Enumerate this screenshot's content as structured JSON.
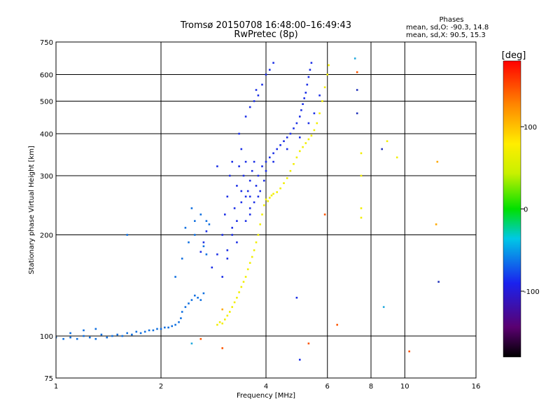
{
  "chart_data": {
    "type": "scatter",
    "title": "Tromsø 20150708 16:48:00–16:49:43",
    "subtitle": "RwPretec (8p)",
    "xlabel": "Frequency [MHz]",
    "ylabel": "Stationary phase Virtual Height [km]",
    "x_scale": "log",
    "y_scale": "log",
    "xlim": [
      1,
      16
    ],
    "ylim": [
      75,
      750
    ],
    "x_ticks": [
      1,
      2,
      4,
      6,
      8,
      10,
      16
    ],
    "y_ticks": [
      75,
      100,
      200,
      300,
      400,
      500,
      600,
      750
    ],
    "grid": true,
    "phase_stats": {
      "heading": "Phases",
      "o_line": "mean, sd,O: -90.3, 14.8",
      "x_line": "mean, sd,X:  90.5, 15.3"
    },
    "colorbar": {
      "label": "[deg]",
      "range": [
        -180,
        180
      ],
      "ticks": [
        100,
        0,
        -100
      ]
    },
    "series": [
      {
        "phase": -90,
        "color": "#1a2ee6",
        "points": [
          [
            2.6,
            178
          ],
          [
            2.65,
            190
          ],
          [
            2.7,
            205
          ],
          [
            2.8,
            160
          ],
          [
            2.9,
            175
          ],
          [
            3.0,
            200
          ],
          [
            3.0,
            150
          ],
          [
            3.05,
            230
          ],
          [
            3.1,
            260
          ],
          [
            3.1,
            180
          ],
          [
            3.15,
            300
          ],
          [
            3.2,
            210
          ],
          [
            3.2,
            330
          ],
          [
            3.25,
            240
          ],
          [
            3.3,
            280
          ],
          [
            3.3,
            190
          ],
          [
            3.35,
            320
          ],
          [
            3.4,
            250
          ],
          [
            3.4,
            360
          ],
          [
            3.45,
            300
          ],
          [
            3.5,
            220
          ],
          [
            3.5,
            330
          ],
          [
            3.55,
            270
          ],
          [
            3.6,
            290
          ],
          [
            3.6,
            240
          ],
          [
            3.65,
            310
          ],
          [
            3.7,
            330
          ],
          [
            3.7,
            250
          ],
          [
            3.75,
            280
          ],
          [
            3.8,
            300
          ],
          [
            3.85,
            270
          ],
          [
            3.9,
            320
          ],
          [
            3.95,
            290
          ],
          [
            4.0,
            310
          ],
          [
            4.0,
            330
          ],
          [
            4.1,
            340
          ],
          [
            4.2,
            350
          ],
          [
            4.3,
            360
          ],
          [
            4.4,
            370
          ],
          [
            4.5,
            380
          ],
          [
            4.6,
            390
          ],
          [
            4.7,
            400
          ],
          [
            4.8,
            415
          ],
          [
            4.9,
            430
          ],
          [
            5.0,
            450
          ],
          [
            5.05,
            470
          ],
          [
            5.1,
            490
          ],
          [
            5.15,
            510
          ],
          [
            5.2,
            530
          ],
          [
            5.25,
            560
          ],
          [
            5.3,
            590
          ],
          [
            5.35,
            620
          ],
          [
            5.4,
            650
          ],
          [
            3.5,
            450
          ],
          [
            3.6,
            480
          ],
          [
            3.7,
            500
          ],
          [
            3.75,
            540
          ],
          [
            3.8,
            520
          ],
          [
            3.9,
            560
          ],
          [
            4.0,
            600
          ],
          [
            4.1,
            620
          ],
          [
            4.2,
            650
          ],
          [
            3.6,
            230
          ],
          [
            3.3,
            220
          ],
          [
            3.1,
            170
          ],
          [
            3.2,
            200
          ],
          [
            3.5,
            260
          ],
          [
            3.8,
            260
          ],
          [
            4.2,
            330
          ],
          [
            4.6,
            360
          ],
          [
            5.0,
            390
          ],
          [
            5.3,
            430
          ],
          [
            5.5,
            460
          ],
          [
            5.7,
            520
          ],
          [
            3.4,
            270
          ],
          [
            3.6,
            260
          ],
          [
            2.9,
            320
          ],
          [
            3.35,
            400
          ],
          [
            4.9,
            130
          ],
          [
            5.0,
            85
          ]
        ]
      },
      {
        "phase": -100,
        "color": "#0f6fe0",
        "points": [
          [
            1.0,
            99
          ],
          [
            1.05,
            98
          ],
          [
            1.1,
            99
          ],
          [
            1.15,
            98
          ],
          [
            1.2,
            100
          ],
          [
            1.25,
            99
          ],
          [
            1.3,
            98
          ],
          [
            1.35,
            101
          ],
          [
            1.4,
            99
          ],
          [
            1.45,
            100
          ],
          [
            1.5,
            101
          ],
          [
            1.55,
            100
          ],
          [
            1.6,
            102
          ],
          [
            1.65,
            101
          ],
          [
            1.7,
            103
          ],
          [
            1.75,
            102
          ],
          [
            1.8,
            103
          ],
          [
            1.85,
            104
          ],
          [
            1.9,
            104
          ],
          [
            1.95,
            105
          ],
          [
            2.0,
            105
          ],
          [
            2.05,
            106
          ],
          [
            2.1,
            106
          ],
          [
            2.15,
            107
          ],
          [
            2.2,
            108
          ],
          [
            2.25,
            110
          ],
          [
            2.28,
            113
          ],
          [
            2.3,
            118
          ],
          [
            2.35,
            122
          ],
          [
            2.4,
            125
          ],
          [
            2.45,
            128
          ],
          [
            2.5,
            132
          ],
          [
            2.55,
            130
          ],
          [
            2.6,
            128
          ],
          [
            2.65,
            134
          ],
          [
            2.2,
            150
          ],
          [
            2.3,
            170
          ],
          [
            2.4,
            190
          ],
          [
            2.35,
            210
          ],
          [
            2.5,
            220
          ],
          [
            2.6,
            230
          ],
          [
            2.5,
            200
          ],
          [
            2.7,
            175
          ],
          [
            2.65,
            185
          ],
          [
            2.45,
            240
          ],
          [
            1.6,
            200
          ],
          [
            1.3,
            105
          ],
          [
            1.2,
            104
          ],
          [
            1.1,
            102
          ],
          [
            2.7,
            220
          ],
          [
            2.75,
            215
          ]
        ]
      },
      {
        "phase": 100,
        "color": "#f2ee00",
        "points": [
          [
            2.9,
            108
          ],
          [
            2.95,
            110
          ],
          [
            3.0,
            109
          ],
          [
            3.05,
            112
          ],
          [
            3.1,
            115
          ],
          [
            3.15,
            118
          ],
          [
            3.2,
            122
          ],
          [
            3.25,
            126
          ],
          [
            3.3,
            130
          ],
          [
            3.35,
            135
          ],
          [
            3.4,
            140
          ],
          [
            3.45,
            145
          ],
          [
            3.5,
            150
          ],
          [
            3.55,
            158
          ],
          [
            3.6,
            165
          ],
          [
            3.65,
            172
          ],
          [
            3.7,
            180
          ],
          [
            3.75,
            190
          ],
          [
            3.8,
            200
          ],
          [
            3.85,
            215
          ],
          [
            3.9,
            230
          ],
          [
            3.95,
            245
          ],
          [
            4.0,
            255
          ],
          [
            4.05,
            252
          ],
          [
            4.1,
            258
          ],
          [
            4.15,
            262
          ],
          [
            4.2,
            265
          ],
          [
            4.3,
            268
          ],
          [
            4.4,
            275
          ],
          [
            4.5,
            285
          ],
          [
            4.6,
            295
          ],
          [
            4.7,
            310
          ],
          [
            4.8,
            325
          ],
          [
            4.9,
            340
          ],
          [
            5.0,
            355
          ],
          [
            5.1,
            365
          ],
          [
            5.2,
            375
          ],
          [
            5.3,
            385
          ],
          [
            5.4,
            395
          ],
          [
            5.5,
            410
          ],
          [
            5.6,
            430
          ],
          [
            5.7,
            460
          ],
          [
            5.8,
            500
          ],
          [
            5.9,
            550
          ],
          [
            6.0,
            600
          ],
          [
            6.05,
            640
          ],
          [
            7.5,
            350
          ],
          [
            7.5,
            300
          ],
          [
            7.5,
            240
          ],
          [
            7.5,
            225
          ],
          [
            8.9,
            380
          ],
          [
            9.5,
            340
          ]
        ]
      },
      {
        "phase": 150,
        "color": "#ff5500",
        "points": [
          [
            2.6,
            98
          ],
          [
            3.0,
            92
          ],
          [
            5.3,
            95
          ],
          [
            5.9,
            230
          ],
          [
            6.4,
            108
          ],
          [
            7.3,
            610
          ],
          [
            10.3,
            90
          ]
        ]
      },
      {
        "phase": -130,
        "color": "#2233bb",
        "points": [
          [
            8.6,
            360
          ],
          [
            12.5,
            145
          ],
          [
            7.3,
            460
          ],
          [
            7.3,
            540
          ]
        ]
      },
      {
        "phase": -80,
        "color": "#22aadd",
        "points": [
          [
            8.7,
            122
          ],
          [
            7.2,
            670
          ],
          [
            2.45,
            95
          ]
        ]
      },
      {
        "phase": 120,
        "color": "#ffaa00",
        "points": [
          [
            12.4,
            330
          ],
          [
            12.3,
            215
          ],
          [
            3.0,
            120
          ]
        ]
      }
    ]
  }
}
